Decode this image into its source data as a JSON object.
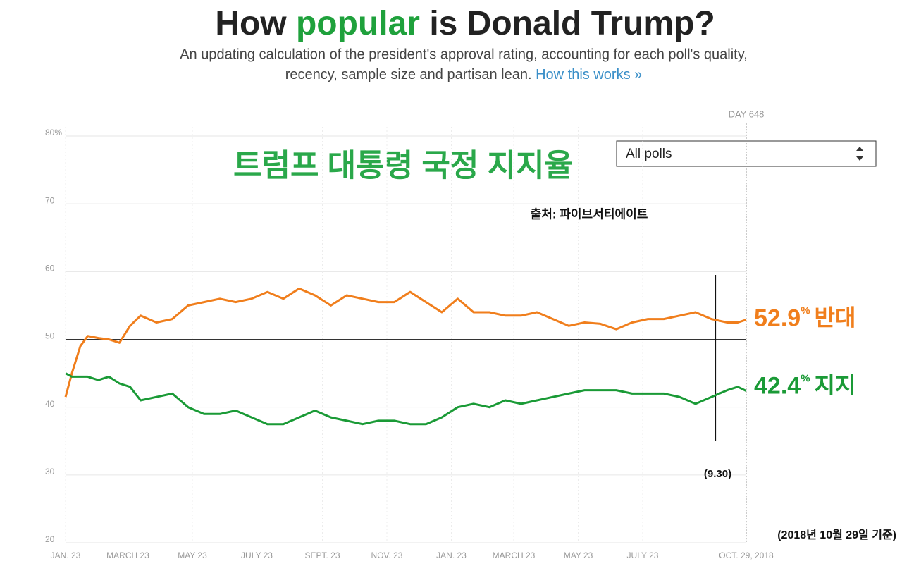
{
  "chart_data": {
    "type": "line",
    "title": [
      "How",
      "popular",
      "is Donald Trump?"
    ],
    "subtitle": [
      "An updating calculation of the president's approval rating, accounting for each poll's quality,",
      "recency, sample size and partisan lean."
    ],
    "link": "How this works »",
    "overlay_title": "트럼프 대통령 국정 지지율",
    "source": "출처: 파이브서티에이트",
    "dropdown": "All polls",
    "date_note": "(2018년 10월 29일 기준)",
    "day_marker": {
      "x": 648,
      "label": "DAY 648"
    },
    "annotation": {
      "x": 619,
      "label": "(9.30)"
    },
    "hline": 50,
    "end_unit": "%",
    "xlim": [
      4,
      648
    ],
    "xticks": [
      {
        "value": 4,
        "label": "JAN. 23"
      },
      {
        "value": 63,
        "label": "MARCH 23"
      },
      {
        "value": 124,
        "label": "MAY 23"
      },
      {
        "value": 185,
        "label": "JULY 23"
      },
      {
        "value": 247,
        "label": "SEPT. 23"
      },
      {
        "value": 308,
        "label": "NOV. 23"
      },
      {
        "value": 369,
        "label": "JAN. 23"
      },
      {
        "value": 428,
        "label": "MARCH 23"
      },
      {
        "value": 489,
        "label": "MAY 23"
      },
      {
        "value": 550,
        "label": "JULY 23"
      },
      {
        "value": 648,
        "label": "OCT. 29, 2018"
      }
    ],
    "ylim": [
      20,
      80
    ],
    "yticks": [
      20,
      30,
      40,
      50,
      60,
      70,
      {
        "value": 80,
        "label": "80%"
      }
    ],
    "grid": true,
    "x": [
      4,
      10,
      18,
      25,
      35,
      45,
      55,
      65,
      75,
      90,
      105,
      120,
      135,
      150,
      165,
      180,
      195,
      210,
      225,
      240,
      255,
      270,
      285,
      300,
      315,
      330,
      345,
      360,
      375,
      390,
      405,
      420,
      435,
      450,
      465,
      480,
      495,
      510,
      525,
      540,
      555,
      570,
      585,
      600,
      615,
      630,
      640,
      648
    ],
    "series": [
      {
        "name": "반대",
        "color": "#f07e1c",
        "values": [
          41.5,
          45,
          49,
          50.5,
          50.2,
          50,
          49.5,
          52,
          53.5,
          52.5,
          53,
          55,
          55.5,
          56,
          55.5,
          56,
          57,
          56,
          57.5,
          56.5,
          55,
          56.5,
          56,
          55.5,
          55.5,
          57,
          55.5,
          54,
          56,
          54,
          54,
          53.5,
          53.5,
          54,
          53,
          52,
          52.5,
          52.3,
          51.5,
          52.5,
          53,
          53,
          53.5,
          54,
          53,
          52.5,
          52.5,
          52.9
        ]
      },
      {
        "name": "지지",
        "color": "#1a9a36",
        "values": [
          45,
          44.5,
          44.5,
          44.5,
          44,
          44.5,
          43.5,
          43,
          41,
          41.5,
          42,
          40,
          39,
          39,
          39.5,
          38.5,
          37.5,
          37.5,
          38.5,
          39.5,
          38.5,
          38,
          37.5,
          38,
          38,
          37.5,
          37.5,
          38.5,
          40,
          40.5,
          40,
          41,
          40.5,
          41,
          41.5,
          42,
          42.5,
          42.5,
          42.5,
          42,
          42,
          42,
          41.5,
          40.5,
          41.5,
          42.5,
          43,
          42.4
        ]
      }
    ]
  }
}
